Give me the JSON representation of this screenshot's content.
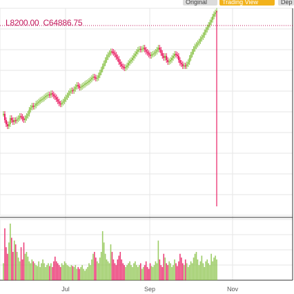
{
  "tabs": [
    {
      "label": "Original",
      "active": false
    },
    {
      "label": "Trading View",
      "active": true
    },
    {
      "label": "Dep",
      "active": false
    }
  ],
  "ohlc_readout": {
    "low": "L8200.00",
    "close": "C64886.75"
  },
  "colors": {
    "up": "#8bc34a",
    "down": "#e91e63",
    "crosshair": "#c2185b",
    "grid": "#e6e6e6",
    "axis": "#333333",
    "tab_active": "#f2b21b"
  },
  "chart_data": {
    "type": "candlestick",
    "x_ticks": [
      "Jul",
      "Sep",
      "Nov"
    ],
    "y_ticks": [],
    "crosshair_value": 64886.75,
    "series": [
      {
        "kind": "price",
        "points": [
          [
            0,
            175
          ],
          [
            2,
            160
          ],
          [
            4,
            150
          ],
          [
            6,
            145
          ],
          [
            8,
            150
          ],
          [
            10,
            165
          ],
          [
            12,
            160
          ],
          [
            14,
            155
          ],
          [
            16,
            160
          ],
          [
            18,
            158
          ],
          [
            20,
            162
          ],
          [
            22,
            165
          ],
          [
            24,
            170
          ],
          [
            26,
            168
          ],
          [
            28,
            163
          ],
          [
            30,
            160
          ],
          [
            32,
            165
          ],
          [
            34,
            170
          ],
          [
            36,
            175
          ],
          [
            38,
            185
          ],
          [
            40,
            190
          ],
          [
            42,
            195
          ],
          [
            44,
            192
          ],
          [
            46,
            195
          ],
          [
            48,
            200
          ],
          [
            50,
            202
          ],
          [
            52,
            205
          ],
          [
            54,
            208
          ],
          [
            56,
            210
          ],
          [
            58,
            212
          ],
          [
            60,
            215
          ],
          [
            62,
            218
          ],
          [
            64,
            220
          ],
          [
            66,
            222
          ],
          [
            68,
            220
          ],
          [
            70,
            225
          ],
          [
            72,
            222
          ],
          [
            74,
            218
          ],
          [
            76,
            215
          ],
          [
            78,
            210
          ],
          [
            80,
            205
          ],
          [
            82,
            200
          ],
          [
            84,
            198
          ],
          [
            86,
            202
          ],
          [
            88,
            205
          ],
          [
            90,
            210
          ],
          [
            92,
            215
          ],
          [
            94,
            220
          ],
          [
            96,
            225
          ],
          [
            98,
            230
          ],
          [
            100,
            232
          ],
          [
            102,
            230
          ],
          [
            104,
            235
          ],
          [
            106,
            240
          ],
          [
            108,
            245
          ],
          [
            110,
            242
          ],
          [
            112,
            238
          ],
          [
            114,
            240
          ],
          [
            116,
            243
          ],
          [
            118,
            245
          ],
          [
            120,
            248
          ],
          [
            122,
            250
          ],
          [
            124,
            252
          ],
          [
            126,
            255
          ],
          [
            128,
            258
          ],
          [
            130,
            262
          ],
          [
            132,
            265
          ],
          [
            134,
            263
          ],
          [
            136,
            260
          ],
          [
            138,
            262
          ],
          [
            140,
            268
          ],
          [
            142,
            275
          ],
          [
            144,
            282
          ],
          [
            146,
            290
          ],
          [
            148,
            297
          ],
          [
            150,
            305
          ],
          [
            152,
            312
          ],
          [
            154,
            318
          ],
          [
            156,
            322
          ],
          [
            158,
            326
          ],
          [
            160,
            325
          ],
          [
            162,
            322
          ],
          [
            164,
            318
          ],
          [
            166,
            312
          ],
          [
            168,
            308
          ],
          [
            170,
            300
          ],
          [
            172,
            295
          ],
          [
            174,
            290
          ],
          [
            176,
            288
          ],
          [
            178,
            285
          ],
          [
            180,
            288
          ],
          [
            182,
            292
          ],
          [
            184,
            298
          ],
          [
            186,
            302
          ],
          [
            188,
            305
          ],
          [
            190,
            310
          ],
          [
            192,
            315
          ],
          [
            194,
            320
          ],
          [
            196,
            325
          ],
          [
            198,
            330
          ],
          [
            200,
            332
          ],
          [
            202,
            330
          ],
          [
            204,
            332
          ],
          [
            206,
            335
          ],
          [
            208,
            330
          ],
          [
            210,
            325
          ],
          [
            212,
            322
          ],
          [
            214,
            318
          ],
          [
            216,
            315
          ],
          [
            218,
            318
          ],
          [
            220,
            320
          ],
          [
            222,
            322
          ],
          [
            224,
            325
          ],
          [
            226,
            330
          ],
          [
            228,
            335
          ],
          [
            230,
            330
          ],
          [
            232,
            322
          ],
          [
            234,
            315
          ],
          [
            236,
            310
          ],
          [
            238,
            315
          ],
          [
            240,
            305
          ],
          [
            242,
            300
          ],
          [
            244,
            302
          ],
          [
            246,
            305
          ],
          [
            248,
            310
          ],
          [
            250,
            315
          ],
          [
            252,
            320
          ],
          [
            254,
            318
          ],
          [
            256,
            315
          ],
          [
            258,
            305
          ],
          [
            260,
            298
          ],
          [
            262,
            295
          ],
          [
            264,
            290
          ],
          [
            266,
            292
          ],
          [
            268,
            290
          ],
          [
            270,
            295
          ],
          [
            272,
            300
          ],
          [
            274,
            310
          ],
          [
            276,
            318
          ],
          [
            278,
            325
          ],
          [
            280,
            332
          ],
          [
            282,
            338
          ],
          [
            284,
            342
          ],
          [
            286,
            346
          ],
          [
            288,
            350
          ],
          [
            290,
            356
          ],
          [
            292,
            360
          ],
          [
            294,
            365
          ],
          [
            296,
            372
          ],
          [
            298,
            378
          ],
          [
            300,
            384
          ],
          [
            302,
            390
          ],
          [
            304,
            396
          ],
          [
            306,
            402
          ],
          [
            308,
            410
          ],
          [
            310,
            416
          ],
          [
            312,
            420
          ],
          [
            314,
            424
          ]
        ]
      },
      {
        "kind": "volume",
        "points": [
          [
            0,
            18
          ],
          [
            2,
            55
          ],
          [
            4,
            35
          ],
          [
            6,
            28
          ],
          [
            8,
            40
          ],
          [
            10,
            60
          ],
          [
            12,
            45
          ],
          [
            14,
            30
          ],
          [
            16,
            42
          ],
          [
            18,
            38
          ],
          [
            20,
            30
          ],
          [
            22,
            24
          ],
          [
            24,
            20
          ],
          [
            26,
            35
          ],
          [
            28,
            22
          ],
          [
            30,
            40
          ],
          [
            32,
            28
          ],
          [
            34,
            30
          ],
          [
            36,
            25
          ],
          [
            38,
            20
          ],
          [
            40,
            18
          ],
          [
            42,
            22
          ],
          [
            44,
            20
          ],
          [
            46,
            18
          ],
          [
            48,
            16
          ],
          [
            50,
            15
          ],
          [
            52,
            20
          ],
          [
            54,
            14
          ],
          [
            56,
            18
          ],
          [
            58,
            22
          ],
          [
            60,
            18
          ],
          [
            62,
            14
          ],
          [
            64,
            16
          ],
          [
            66,
            18
          ],
          [
            68,
            15
          ],
          [
            70,
            18
          ],
          [
            72,
            14
          ],
          [
            74,
            20
          ],
          [
            76,
            25
          ],
          [
            78,
            20
          ],
          [
            80,
            18
          ],
          [
            82,
            16
          ],
          [
            84,
            14
          ],
          [
            86,
            18
          ],
          [
            88,
            16
          ],
          [
            90,
            20
          ],
          [
            92,
            18
          ],
          [
            94,
            16
          ],
          [
            96,
            15
          ],
          [
            98,
            14
          ],
          [
            100,
            16
          ],
          [
            102,
            15
          ],
          [
            104,
            14
          ],
          [
            106,
            16
          ],
          [
            108,
            12
          ],
          [
            110,
            14
          ],
          [
            112,
            12
          ],
          [
            114,
            14
          ],
          [
            116,
            16
          ],
          [
            118,
            12
          ],
          [
            120,
            10
          ],
          [
            122,
            12
          ],
          [
            124,
            14
          ],
          [
            126,
            18
          ],
          [
            128,
            16
          ],
          [
            130,
            22
          ],
          [
            132,
            28
          ],
          [
            134,
            30
          ],
          [
            136,
            24
          ],
          [
            138,
            20
          ],
          [
            140,
            18
          ],
          [
            142,
            24
          ],
          [
            144,
            30
          ],
          [
            146,
            52
          ],
          [
            148,
            40
          ],
          [
            150,
            28
          ],
          [
            152,
            22
          ],
          [
            154,
            20
          ],
          [
            156,
            18
          ],
          [
            158,
            38
          ],
          [
            160,
            30
          ],
          [
            162,
            22
          ],
          [
            164,
            18
          ],
          [
            166,
            16
          ],
          [
            168,
            22
          ],
          [
            170,
            26
          ],
          [
            172,
            30
          ],
          [
            174,
            22
          ],
          [
            176,
            18
          ],
          [
            178,
            16
          ],
          [
            180,
            14
          ],
          [
            182,
            16
          ],
          [
            184,
            18
          ],
          [
            186,
            20
          ],
          [
            188,
            16
          ],
          [
            190,
            14
          ],
          [
            192,
            18
          ],
          [
            194,
            20
          ],
          [
            196,
            16
          ],
          [
            198,
            14
          ],
          [
            200,
            16
          ],
          [
            202,
            18
          ],
          [
            204,
            12
          ],
          [
            206,
            14
          ],
          [
            208,
            16
          ],
          [
            210,
            20
          ],
          [
            212,
            14
          ],
          [
            214,
            12
          ],
          [
            216,
            18
          ],
          [
            218,
            15
          ],
          [
            220,
            14
          ],
          [
            222,
            16
          ],
          [
            224,
            20
          ],
          [
            226,
            18
          ],
          [
            228,
            42
          ],
          [
            230,
            22
          ],
          [
            232,
            16
          ],
          [
            234,
            14
          ],
          [
            236,
            28
          ],
          [
            238,
            24
          ],
          [
            240,
            18
          ],
          [
            242,
            16
          ],
          [
            244,
            20
          ],
          [
            246,
            18
          ],
          [
            248,
            14
          ],
          [
            250,
            16
          ],
          [
            252,
            22
          ],
          [
            254,
            18
          ],
          [
            256,
            15
          ],
          [
            258,
            20
          ],
          [
            260,
            28
          ],
          [
            262,
            24
          ],
          [
            264,
            18
          ],
          [
            266,
            16
          ],
          [
            268,
            22
          ],
          [
            270,
            18
          ],
          [
            272,
            14
          ],
          [
            274,
            16
          ],
          [
            276,
            20
          ],
          [
            278,
            18
          ],
          [
            280,
            24
          ],
          [
            282,
            28
          ],
          [
            284,
            30
          ],
          [
            286,
            22
          ],
          [
            288,
            16
          ],
          [
            290,
            20
          ],
          [
            292,
            26
          ],
          [
            294,
            18
          ],
          [
            296,
            14
          ],
          [
            298,
            20
          ],
          [
            300,
            22
          ],
          [
            302,
            18
          ],
          [
            304,
            16
          ],
          [
            306,
            28
          ],
          [
            308,
            20
          ],
          [
            310,
            24
          ],
          [
            312,
            26
          ],
          [
            314,
            22
          ]
        ]
      }
    ]
  }
}
